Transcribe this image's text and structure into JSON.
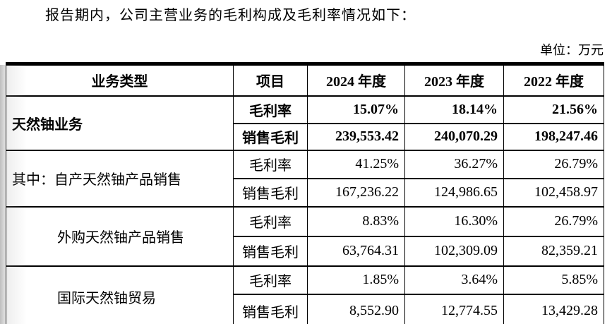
{
  "intro_text": "报告期内，公司主营业务的毛利构成及毛利率情况如下：",
  "unit_label": "单位：万元",
  "table": {
    "headers": {
      "business_type": "业务类型",
      "item": "项目",
      "year_2024": "2024 年度",
      "year_2023": "2023 年度",
      "year_2022": "2022 年度"
    },
    "row_item_labels": {
      "gross_margin": "毛利率",
      "sales_gross_profit": "销售毛利"
    },
    "groups": [
      {
        "business_type": "天然铀业务",
        "rows": [
          {
            "item": "毛利率",
            "values": [
              "15.07%",
              "18.14%",
              "21.56%"
            ]
          },
          {
            "item": "销售毛利",
            "values": [
              "239,553.42",
              "240,070.29",
              "198,247.46"
            ]
          }
        ]
      },
      {
        "business_type": "其中：自产天然铀产品销售",
        "rows": [
          {
            "item": "毛利率",
            "values": [
              "41.25%",
              "36.27%",
              "26.79%"
            ]
          },
          {
            "item": "销售毛利",
            "values": [
              "167,236.22",
              "124,986.65",
              "102,458.97"
            ]
          }
        ]
      },
      {
        "business_type": "外购天然铀产品销售",
        "rows": [
          {
            "item": "毛利率",
            "values": [
              "8.83%",
              "16.30%",
              "26.79%"
            ]
          },
          {
            "item": "销售毛利",
            "values": [
              "63,764.31",
              "102,309.09",
              "82,359.21"
            ]
          }
        ]
      },
      {
        "business_type": "国际天然铀贸易",
        "rows": [
          {
            "item": "毛利率",
            "values": [
              "1.85%",
              "3.64%",
              "5.85%"
            ]
          },
          {
            "item": "销售毛利",
            "values": [
              "8,552.90",
              "12,774.55",
              "13,429.28"
            ]
          }
        ]
      }
    ],
    "colors": {
      "border": "#000000",
      "text": "#000000",
      "background": "#ffffff"
    }
  }
}
